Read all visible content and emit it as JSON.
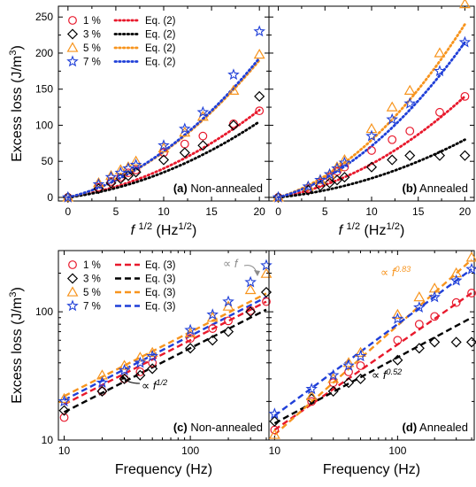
{
  "colors": {
    "s1": "#e8192c",
    "s3": "#000000",
    "s5": "#f7941d",
    "s7": "#1f3fd8",
    "ann_gray": "#8c8c8c"
  },
  "series_names": [
    "1 %",
    "3 %",
    "5 %",
    "7 %"
  ],
  "chart_data": [
    {
      "panel_label": "(a)",
      "panel_name": "Non-annealed",
      "type": "scatter",
      "xscale": "linear",
      "yscale": "linear",
      "xlim": [
        -1,
        21
      ],
      "ylim": [
        -5,
        265
      ],
      "xticks": [
        0,
        5,
        10,
        15,
        20
      ],
      "yticks": [
        0,
        50,
        100,
        150,
        200,
        250
      ],
      "xlabel": {
        "base": "f ",
        "sup": "1/2",
        "unit": " (Hz",
        "unit_sup": "1/2",
        "close": ")"
      },
      "ylabel": {
        "base": "Excess loss (J/m",
        "sup": "3",
        "close": ")"
      },
      "fit_label": "Eq. (2)",
      "legend": "top-left",
      "series": [
        {
          "name": "1 %",
          "marker": "circle",
          "x": [
            0,
            3.2,
            4.5,
            5.5,
            6.3,
            7.1,
            10,
            12.2,
            14.1,
            17.3,
            20
          ],
          "y": [
            0,
            14,
            22,
            28,
            34,
            38,
            62,
            74,
            85,
            102,
            120
          ],
          "fit": [
            [
              0,
              0
            ],
            [
              20,
              121
            ]
          ]
        },
        {
          "name": "3 %",
          "marker": "diamond",
          "x": [
            0,
            3.2,
            4.5,
            5.5,
            6.3,
            7.1,
            10,
            12.2,
            14.1,
            17.3,
            20
          ],
          "y": [
            0,
            12,
            20,
            26,
            30,
            35,
            52,
            62,
            72,
            100,
            140
          ],
          "fit": [
            [
              0,
              0
            ],
            [
              20,
              105
            ]
          ]
        },
        {
          "name": "5 %",
          "marker": "triangle",
          "x": [
            0,
            3.2,
            4.5,
            5.5,
            6.3,
            7.1,
            10,
            12.2,
            14.1,
            17.3,
            20
          ],
          "y": [
            0,
            20,
            30,
            38,
            42,
            50,
            68,
            90,
            112,
            148,
            198
          ],
          "fit": [
            [
              0,
              0
            ],
            [
              20,
              190
            ]
          ]
        },
        {
          "name": "7 %",
          "marker": "star",
          "x": [
            0,
            3.2,
            4.5,
            5.5,
            6.3,
            7.1,
            10,
            12.2,
            14.1,
            17.3,
            20
          ],
          "y": [
            0,
            18,
            28,
            34,
            40,
            45,
            72,
            95,
            118,
            170,
            230
          ],
          "fit": [
            [
              0,
              0
            ],
            [
              20,
              193
            ]
          ]
        }
      ]
    },
    {
      "panel_label": "(b)",
      "panel_name": "Annealed",
      "type": "scatter",
      "xscale": "linear",
      "yscale": "linear",
      "xlim": [
        -1,
        21
      ],
      "ylim": [
        -5,
        265
      ],
      "xticks": [
        0,
        5,
        10,
        15,
        20
      ],
      "yticks": [],
      "xlabel": {
        "base": "f ",
        "sup": "1/2",
        "unit": " (Hz",
        "unit_sup": "1/2",
        "close": ")"
      },
      "fit_label": "Eq. (2)",
      "series": [
        {
          "name": "1 %",
          "marker": "circle",
          "x": [
            0,
            3.2,
            4.5,
            5.5,
            6.3,
            7.1,
            10,
            12.2,
            14.1,
            17.3,
            20
          ],
          "y": [
            0,
            12,
            20,
            28,
            36,
            42,
            65,
            80,
            92,
            118,
            140
          ],
          "fit": [
            [
              0,
              0
            ],
            [
              20,
              140
            ]
          ]
        },
        {
          "name": "3 %",
          "marker": "diamond",
          "x": [
            0,
            3.2,
            4.5,
            5.5,
            6.3,
            7.1,
            10,
            12.2,
            14.1,
            17.3,
            20
          ],
          "y": [
            0,
            10,
            16,
            20,
            24,
            28,
            42,
            52,
            58,
            58,
            58
          ],
          "fit": [
            [
              0,
              0
            ],
            [
              20,
              80
            ]
          ]
        },
        {
          "name": "5 %",
          "marker": "triangle",
          "x": [
            0,
            3.2,
            4.5,
            5.5,
            6.3,
            7.1,
            10,
            12.2,
            14.1,
            17.3,
            20
          ],
          "y": [
            0,
            15,
            24,
            32,
            42,
            52,
            95,
            125,
            148,
            200,
            268
          ],
          "fit": [
            [
              0,
              0
            ],
            [
              20,
              240
            ]
          ]
        },
        {
          "name": "7 %",
          "marker": "star",
          "x": [
            0,
            3.2,
            4.5,
            5.5,
            6.3,
            7.1,
            10,
            12.2,
            14.1,
            17.3,
            20
          ],
          "y": [
            0,
            15,
            24,
            32,
            40,
            48,
            85,
            108,
            130,
            175,
            215
          ],
          "fit": [
            [
              0,
              0
            ],
            [
              20,
              215
            ]
          ]
        }
      ]
    },
    {
      "panel_label": "(c)",
      "panel_name": "Non-annealed",
      "type": "scatter",
      "xscale": "log",
      "yscale": "log",
      "xlim": [
        9,
        420
      ],
      "ylim": [
        10,
        300
      ],
      "xticks": [
        10,
        100
      ],
      "yticks": [
        10,
        100
      ],
      "xlabel": {
        "base": "Frequency (Hz)"
      },
      "ylabel": {
        "base": "Excess loss (J/m",
        "sup": "3",
        "close": ")"
      },
      "fit_label": "Eq. (3)",
      "legend": "top-left",
      "annotations": [
        {
          "base": "∝ f",
          "sup": "1/2"
        },
        {
          "base": "∝ f",
          "sup": ""
        }
      ],
      "series": [
        {
          "name": "1 %",
          "marker": "circle",
          "x": [
            10,
            20,
            30,
            40,
            50,
            100,
            150,
            200,
            300,
            400
          ],
          "y": [
            15,
            24,
            30,
            34,
            40,
            62,
            74,
            85,
            102,
            120
          ],
          "fit": [
            [
              10,
              19
            ],
            [
              400,
              120
            ]
          ]
        },
        {
          "name": "3 %",
          "marker": "diamond",
          "x": [
            10,
            20,
            30,
            40,
            50,
            100,
            150,
            200,
            300,
            400
          ],
          "y": [
            17,
            24,
            30,
            32,
            36,
            52,
            60,
            70,
            100,
            142
          ],
          "fit": [
            [
              10,
              16.5
            ],
            [
              400,
              104
            ]
          ]
        },
        {
          "name": "5 %",
          "marker": "triangle",
          "x": [
            10,
            20,
            30,
            40,
            50,
            100,
            150,
            200,
            300,
            400
          ],
          "y": [
            21,
            32,
            38,
            44,
            48,
            68,
            90,
            110,
            148,
            198
          ],
          "fit": [
            [
              10,
              22
            ],
            [
              400,
              139
            ]
          ]
        },
        {
          "name": "7 %",
          "marker": "star",
          "x": [
            10,
            20,
            30,
            40,
            50,
            100,
            150,
            200,
            300,
            400
          ],
          "y": [
            20,
            28,
            35,
            40,
            45,
            72,
            95,
            120,
            170,
            230
          ],
          "fit": [
            [
              10,
              20.5
            ],
            [
              400,
              130
            ]
          ]
        }
      ]
    },
    {
      "panel_label": "(d)",
      "panel_name": "Annealed",
      "type": "scatter",
      "xscale": "log",
      "yscale": "log",
      "xlim": [
        9,
        420
      ],
      "ylim": [
        10,
        300
      ],
      "xticks": [
        10,
        100
      ],
      "yticks": [],
      "xlabel": {
        "base": "Frequency (Hz)"
      },
      "annotations": [
        {
          "base": "∝ f",
          "sup": "0.83"
        },
        {
          "base": "∝ f",
          "sup": "0.52"
        }
      ],
      "series": [
        {
          "name": "1 %",
          "marker": "circle",
          "x": [
            10,
            20,
            30,
            40,
            50,
            100,
            150,
            200,
            300,
            400
          ],
          "y": [
            12,
            20,
            28,
            34,
            38,
            60,
            80,
            92,
            118,
            140
          ],
          "fit": [
            [
              10,
              12
            ],
            [
              400,
              140
            ]
          ]
        },
        {
          "name": "3 %",
          "marker": "diamond",
          "x": [
            10,
            20,
            30,
            40,
            50,
            100,
            150,
            200,
            300,
            400
          ],
          "y": [
            14,
            21,
            24,
            28,
            30,
            42,
            52,
            58,
            58,
            58
          ],
          "fit": [
            [
              10,
              13.5
            ],
            [
              400,
              90
            ]
          ]
        },
        {
          "name": "5 %",
          "marker": "triangle",
          "x": [
            10,
            20,
            30,
            40,
            50,
            100,
            150,
            200,
            300,
            400
          ],
          "y": [
            11,
            22,
            30,
            40,
            48,
            95,
            130,
            152,
            200,
            265
          ],
          "fit": [
            [
              10,
              11
            ],
            [
              400,
              255
            ]
          ]
        },
        {
          "name": "7 %",
          "marker": "star",
          "x": [
            10,
            20,
            30,
            40,
            50,
            100,
            150,
            200,
            300,
            400
          ],
          "y": [
            16,
            25,
            32,
            38,
            45,
            88,
            108,
            130,
            175,
            215
          ],
          "fit": [
            [
              10,
              15.5
            ],
            [
              400,
              215
            ]
          ]
        }
      ]
    }
  ]
}
